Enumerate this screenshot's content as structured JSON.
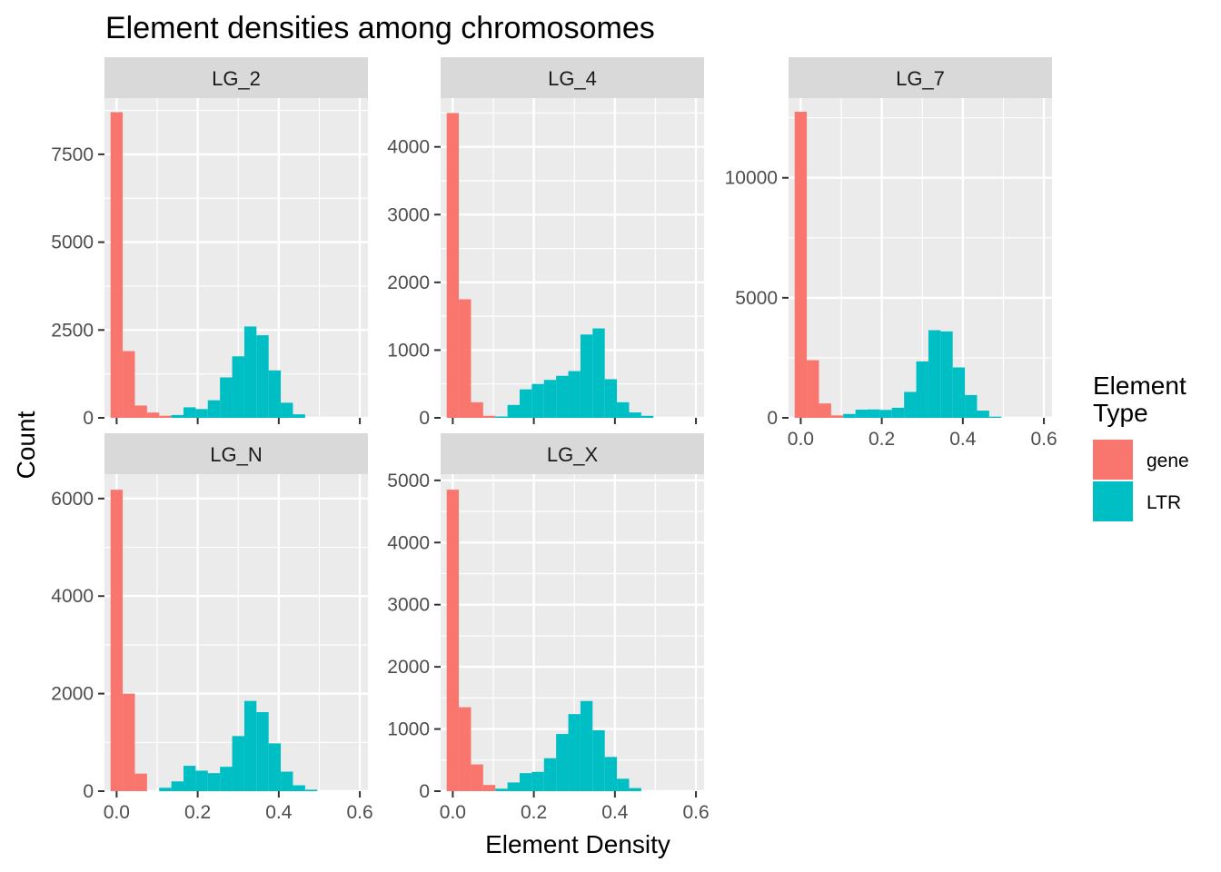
{
  "chart_data": {
    "type": "bar",
    "title": "Element densities among chromosomes",
    "xlabel": "Element Density",
    "ylabel": "Count",
    "grid": true,
    "legend": {
      "title_lines": [
        "Element",
        "Type"
      ],
      "placement": "right",
      "entries": [
        {
          "name": "gene",
          "color": "#F8766D"
        },
        {
          "name": "LTR",
          "color": "#00BFC4"
        }
      ]
    },
    "x_ticks": [
      0,
      0.2,
      0.4,
      0.6
    ],
    "x_tick_labels": [
      "0.0",
      "0.2",
      "0.4",
      "0.6"
    ],
    "xlim": [
      -0.03,
      0.62
    ],
    "bin_width": 0.03,
    "panels": [
      {
        "label": "LG_2",
        "ylim": [
          0,
          9100
        ],
        "y_ticks": [
          0,
          2500,
          5000,
          7500
        ],
        "y_tick_labels": [
          "0",
          "2500",
          "5000",
          "7500"
        ],
        "series": [
          {
            "name": "gene",
            "bins": [
              {
                "x": 0.0,
                "y": 8700
              },
              {
                "x": 0.03,
                "y": 1900
              },
              {
                "x": 0.06,
                "y": 350
              },
              {
                "x": 0.09,
                "y": 150
              },
              {
                "x": 0.12,
                "y": 60
              }
            ]
          },
          {
            "name": "LTR",
            "bins": [
              {
                "x": 0.15,
                "y": 80
              },
              {
                "x": 0.18,
                "y": 300
              },
              {
                "x": 0.21,
                "y": 250
              },
              {
                "x": 0.24,
                "y": 500
              },
              {
                "x": 0.27,
                "y": 1150
              },
              {
                "x": 0.3,
                "y": 1750
              },
              {
                "x": 0.33,
                "y": 2600
              },
              {
                "x": 0.36,
                "y": 2350
              },
              {
                "x": 0.39,
                "y": 1350
              },
              {
                "x": 0.42,
                "y": 430
              },
              {
                "x": 0.45,
                "y": 100
              }
            ]
          }
        ]
      },
      {
        "label": "LG_4",
        "ylim": [
          0,
          4720
        ],
        "y_ticks": [
          0,
          1000,
          2000,
          3000,
          4000
        ],
        "y_tick_labels": [
          "0",
          "1000",
          "2000",
          "3000",
          "4000"
        ],
        "series": [
          {
            "name": "gene",
            "bins": [
              {
                "x": 0.0,
                "y": 4500
              },
              {
                "x": 0.03,
                "y": 1750
              },
              {
                "x": 0.06,
                "y": 230
              },
              {
                "x": 0.09,
                "y": 30
              }
            ]
          },
          {
            "name": "LTR",
            "bins": [
              {
                "x": 0.12,
                "y": 20
              },
              {
                "x": 0.15,
                "y": 190
              },
              {
                "x": 0.18,
                "y": 420
              },
              {
                "x": 0.21,
                "y": 500
              },
              {
                "x": 0.24,
                "y": 560
              },
              {
                "x": 0.27,
                "y": 620
              },
              {
                "x": 0.3,
                "y": 690
              },
              {
                "x": 0.33,
                "y": 1230
              },
              {
                "x": 0.36,
                "y": 1320
              },
              {
                "x": 0.39,
                "y": 570
              },
              {
                "x": 0.42,
                "y": 230
              },
              {
                "x": 0.45,
                "y": 80
              },
              {
                "x": 0.48,
                "y": 30
              }
            ]
          }
        ]
      },
      {
        "label": "LG_7",
        "ylim": [
          0,
          13320
        ],
        "y_ticks": [
          0,
          5000,
          10000
        ],
        "y_tick_labels": [
          "0",
          "5000",
          "10000"
        ],
        "series": [
          {
            "name": "gene",
            "bins": [
              {
                "x": 0.0,
                "y": 12750
              },
              {
                "x": 0.03,
                "y": 2400
              },
              {
                "x": 0.06,
                "y": 600
              },
              {
                "x": 0.09,
                "y": 100
              }
            ]
          },
          {
            "name": "LTR",
            "bins": [
              {
                "x": 0.12,
                "y": 160
              },
              {
                "x": 0.15,
                "y": 340
              },
              {
                "x": 0.18,
                "y": 350
              },
              {
                "x": 0.21,
                "y": 330
              },
              {
                "x": 0.24,
                "y": 420
              },
              {
                "x": 0.27,
                "y": 1080
              },
              {
                "x": 0.3,
                "y": 2350
              },
              {
                "x": 0.33,
                "y": 3650
              },
              {
                "x": 0.36,
                "y": 3600
              },
              {
                "x": 0.39,
                "y": 2100
              },
              {
                "x": 0.42,
                "y": 950
              },
              {
                "x": 0.45,
                "y": 300
              },
              {
                "x": 0.48,
                "y": 50
              }
            ]
          }
        ]
      },
      {
        "label": "LG_N",
        "ylim": [
          0,
          6500
        ],
        "y_ticks": [
          0,
          2000,
          4000,
          6000
        ],
        "y_tick_labels": [
          "0",
          "2000",
          "4000",
          "6000"
        ],
        "series": [
          {
            "name": "gene",
            "bins": [
              {
                "x": 0.0,
                "y": 6180
              },
              {
                "x": 0.03,
                "y": 2000
              },
              {
                "x": 0.06,
                "y": 360
              }
            ]
          },
          {
            "name": "LTR",
            "bins": [
              {
                "x": 0.12,
                "y": 70
              },
              {
                "x": 0.15,
                "y": 200
              },
              {
                "x": 0.18,
                "y": 520
              },
              {
                "x": 0.21,
                "y": 420
              },
              {
                "x": 0.24,
                "y": 370
              },
              {
                "x": 0.27,
                "y": 500
              },
              {
                "x": 0.3,
                "y": 1130
              },
              {
                "x": 0.33,
                "y": 1850
              },
              {
                "x": 0.36,
                "y": 1620
              },
              {
                "x": 0.39,
                "y": 980
              },
              {
                "x": 0.42,
                "y": 400
              },
              {
                "x": 0.45,
                "y": 120
              },
              {
                "x": 0.48,
                "y": 30
              }
            ]
          }
        ]
      },
      {
        "label": "LG_X",
        "ylim": [
          0,
          5100
        ],
        "y_ticks": [
          0,
          1000,
          2000,
          3000,
          4000,
          5000
        ],
        "y_tick_labels": [
          "0",
          "1000",
          "2000",
          "3000",
          "4000",
          "5000"
        ],
        "series": [
          {
            "name": "gene",
            "bins": [
              {
                "x": 0.0,
                "y": 4850
              },
              {
                "x": 0.03,
                "y": 1350
              },
              {
                "x": 0.06,
                "y": 430
              },
              {
                "x": 0.09,
                "y": 100
              }
            ]
          },
          {
            "name": "LTR",
            "bins": [
              {
                "x": 0.12,
                "y": 40
              },
              {
                "x": 0.15,
                "y": 140
              },
              {
                "x": 0.18,
                "y": 290
              },
              {
                "x": 0.21,
                "y": 310
              },
              {
                "x": 0.24,
                "y": 530
              },
              {
                "x": 0.27,
                "y": 920
              },
              {
                "x": 0.3,
                "y": 1240
              },
              {
                "x": 0.33,
                "y": 1450
              },
              {
                "x": 0.36,
                "y": 980
              },
              {
                "x": 0.39,
                "y": 550
              },
              {
                "x": 0.42,
                "y": 200
              },
              {
                "x": 0.45,
                "y": 50
              }
            ]
          }
        ]
      }
    ]
  }
}
